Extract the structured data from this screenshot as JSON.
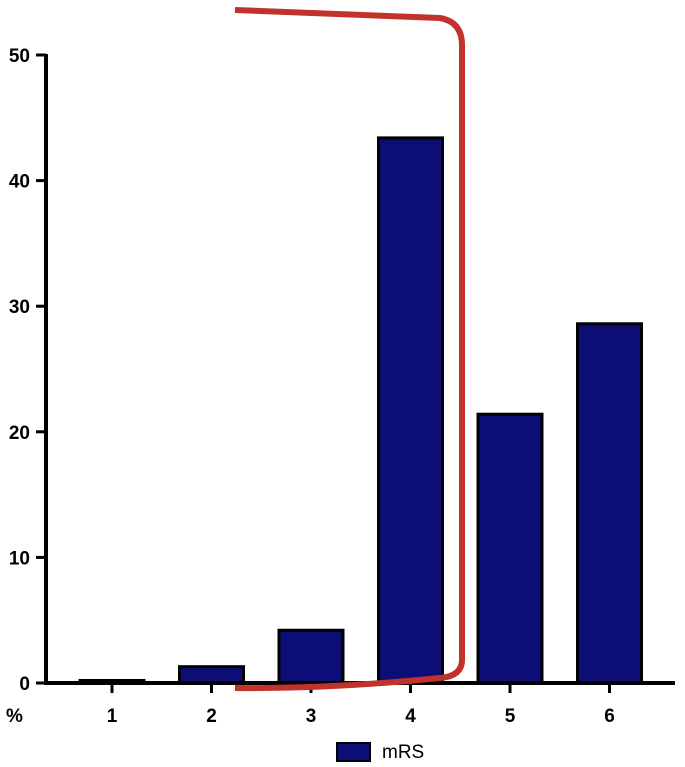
{
  "chart_data": {
    "type": "bar",
    "title": "",
    "xlabel": "",
    "ylabel": "%",
    "categories": [
      "1",
      "2",
      "3",
      "4",
      "5",
      "6"
    ],
    "series": [
      {
        "name": "mRS",
        "values": [
          0.2,
          1.3,
          4.2,
          43.4,
          21.4,
          28.6
        ]
      }
    ],
    "ylim": [
      0,
      50
    ],
    "yticks": [
      0,
      10,
      20,
      30,
      40,
      50
    ],
    "grid": false,
    "legend": "bottom-center",
    "annotation": "red bracket enclosing categories 3 and 4",
    "colors": {
      "bar_fill": "#0d0d78",
      "bar_stroke": "#000000",
      "bracket": "#c0322b"
    }
  }
}
